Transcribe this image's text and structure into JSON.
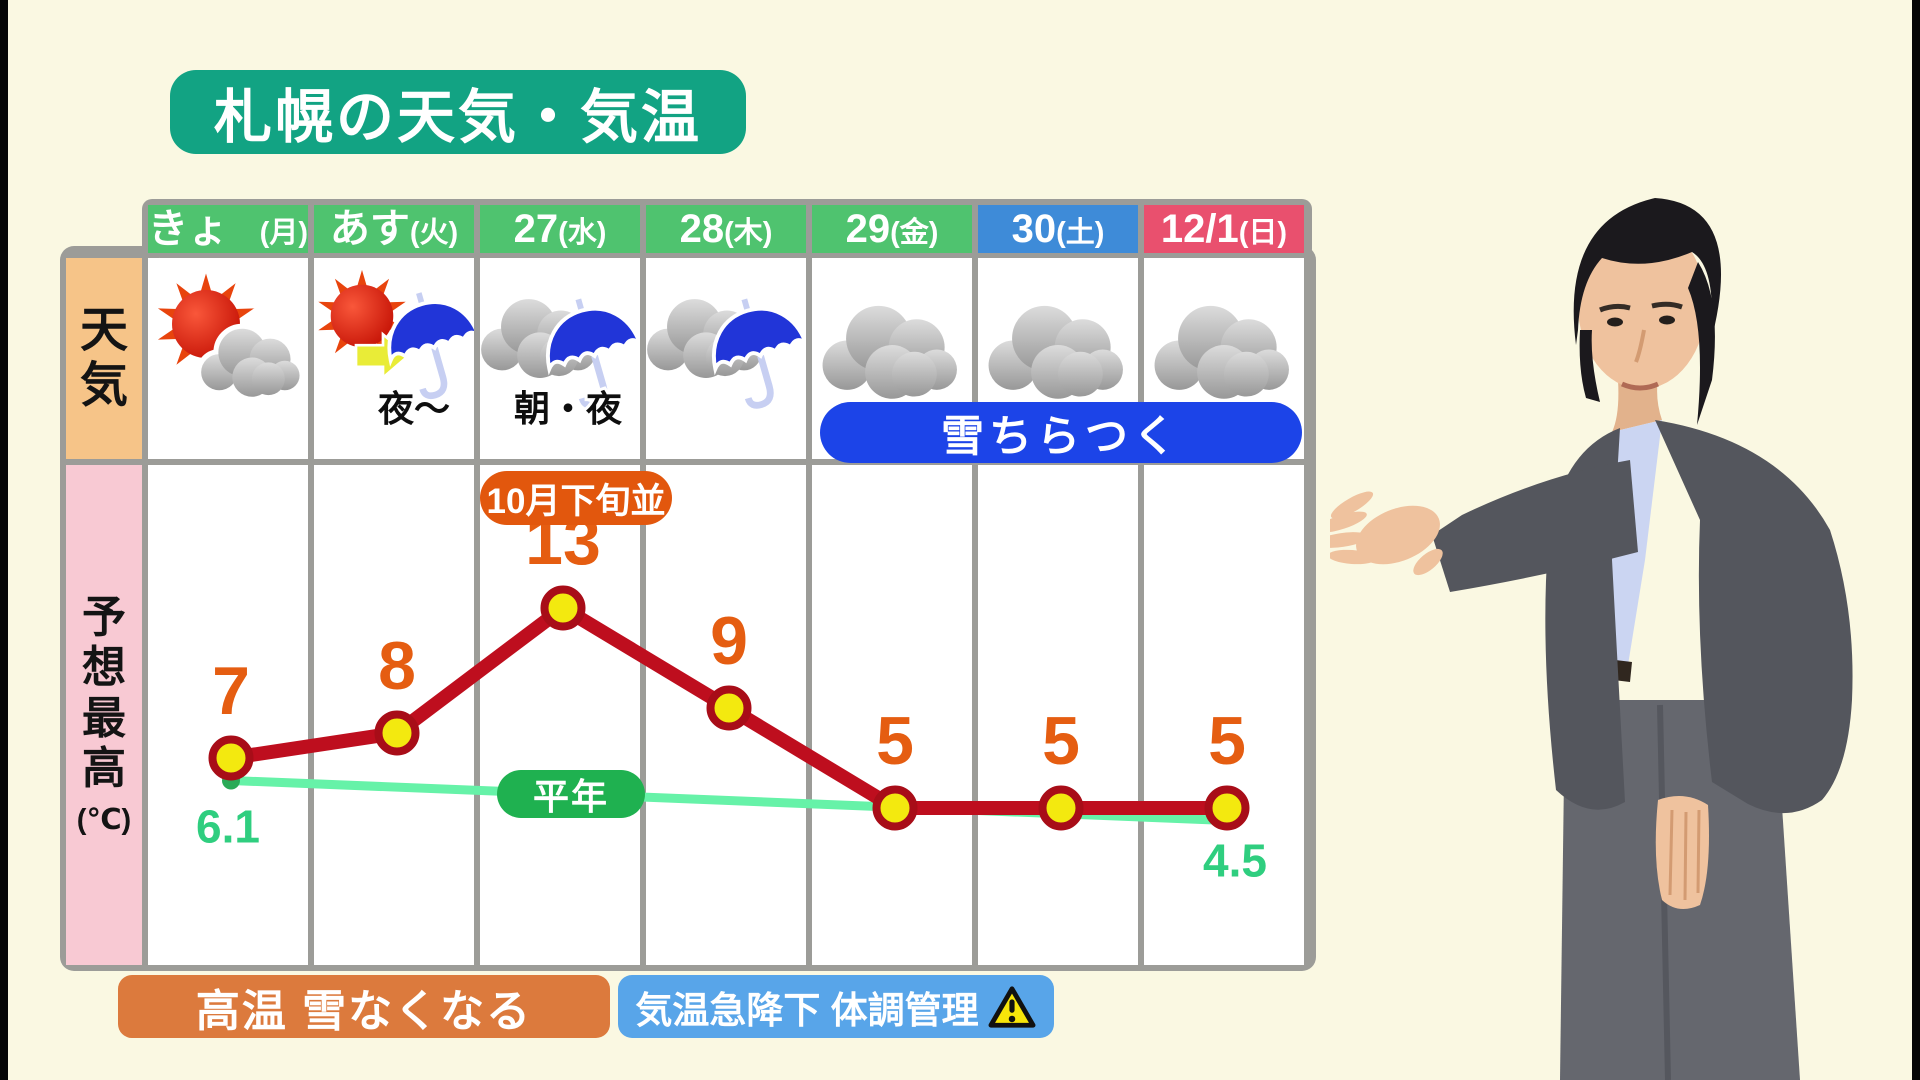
{
  "title": "札幌の天気・気温",
  "table": {
    "row_labels": {
      "weather": "天気",
      "temp": "予想最高",
      "temp_unit": "(℃)"
    },
    "days": [
      {
        "label": "きょう(月)",
        "type": "weekday",
        "icon": "sun-cloud-icon",
        "note": ""
      },
      {
        "label": "あす(火)",
        "type": "weekday",
        "icon": "sun-then-rain-icon",
        "note": "夜〜"
      },
      {
        "label": "27(水)",
        "type": "weekday",
        "icon": "cloud-rain-icon",
        "note": "朝・夜"
      },
      {
        "label": "28(木)",
        "type": "weekday",
        "icon": "cloud-rain-icon",
        "note": ""
      },
      {
        "label": "29(金)",
        "type": "weekday",
        "icon": "cloud-icon",
        "note": ""
      },
      {
        "label": "30(土)",
        "type": "saturday",
        "icon": "cloud-icon",
        "note": ""
      },
      {
        "label": "12/1(日)",
        "type": "sunday",
        "icon": "cloud-icon",
        "note": ""
      }
    ],
    "snow_banner": "雪ちらつく"
  },
  "chart_data": {
    "type": "line",
    "categories": [
      "きょう(月)",
      "あす(火)",
      "27(水)",
      "28(木)",
      "29(金)",
      "30(土)",
      "12/1(日)"
    ],
    "series": [
      {
        "name": "予想最高気温",
        "values": [
          7,
          8,
          13,
          9,
          5,
          5,
          5
        ],
        "color": "#BE0E1E"
      },
      {
        "name": "平年",
        "values": [
          6.1,
          null,
          null,
          null,
          null,
          null,
          4.5
        ],
        "color": "#66F2A8"
      }
    ],
    "annotations": {
      "peak_badge": "10月下旬並",
      "normal_label": "平年",
      "normal_start": "6.1",
      "normal_end": "4.5"
    },
    "ylabel": "予想最高(℃)",
    "legend_position": "inline",
    "grid": "vertical-only"
  },
  "footer": {
    "left_banner": "高温 雪なくなる",
    "right_banner": "気温急降下 体調管理",
    "warning_icon": "warning-triangle-icon"
  },
  "colors": {
    "background": "#FAF8E2",
    "title_bg": "#12A383",
    "weekday_bg": "#4FC36F",
    "saturday_bg": "#3E8BD8",
    "sunday_bg": "#E9506E",
    "grid_gray": "#9C9C98",
    "weather_label_bg": "#F6C488",
    "temp_label_bg": "#F8C9D3",
    "temp_line": "#BE0E1E",
    "temp_dot": "#F3E90F",
    "temp_number": "#E55D11",
    "normal_line": "#66F2A8",
    "normal_text": "#2FCE7F",
    "peak_badge_bg": "#E2570D",
    "heinen_badge_bg": "#1FB150",
    "snow_pill_bg": "#1C44E8",
    "footer_orange_bg": "#DC7A3D",
    "footer_blue_bg": "#58A5E9"
  }
}
